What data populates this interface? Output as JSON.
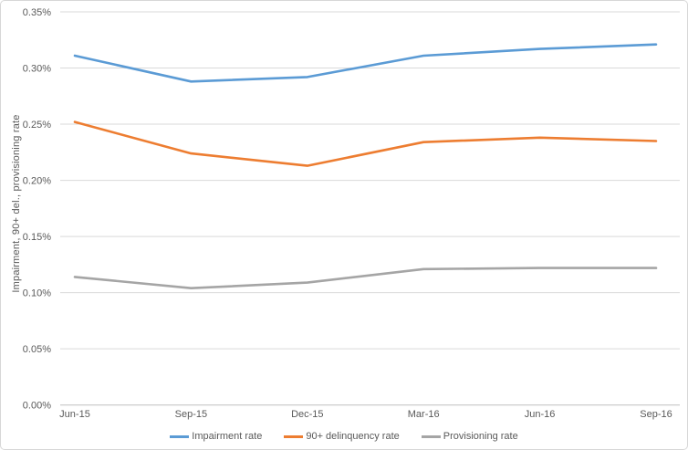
{
  "chart_data": {
    "type": "line",
    "title": "",
    "xlabel": "",
    "ylabel": "Impairment, 90+ del., provisioning rate",
    "categories": [
      "Jun-15",
      "Sep-15",
      "Dec-15",
      "Mar-16",
      "Jun-16",
      "Sep-16"
    ],
    "series": [
      {
        "name": "Impairment rate",
        "color": "#5B9BD5",
        "values": [
          0.311,
          0.288,
          0.292,
          0.311,
          0.317,
          0.321
        ]
      },
      {
        "name": "90+ delinquency rate",
        "color": "#ED7D31",
        "values": [
          0.252,
          0.224,
          0.213,
          0.234,
          0.238,
          0.235
        ]
      },
      {
        "name": "Provisioning rate",
        "color": "#A5A5A5",
        "values": [
          0.114,
          0.104,
          0.109,
          0.121,
          0.122,
          0.122
        ]
      }
    ],
    "values_unit": "percent",
    "ylim": [
      0,
      0.35
    ],
    "ytick_step": 0.05,
    "ytick_labels": [
      "0.00%",
      "0.05%",
      "0.10%",
      "0.15%",
      "0.20%",
      "0.25%",
      "0.30%",
      "0.35%"
    ],
    "grid": true,
    "legend_position": "bottom"
  },
  "colors": {
    "background": "#FFFFFF",
    "frame_border": "#D7D7D7",
    "gridline": "#D9D9D9",
    "axis_line": "#BFBFBF",
    "text": "#595959"
  }
}
